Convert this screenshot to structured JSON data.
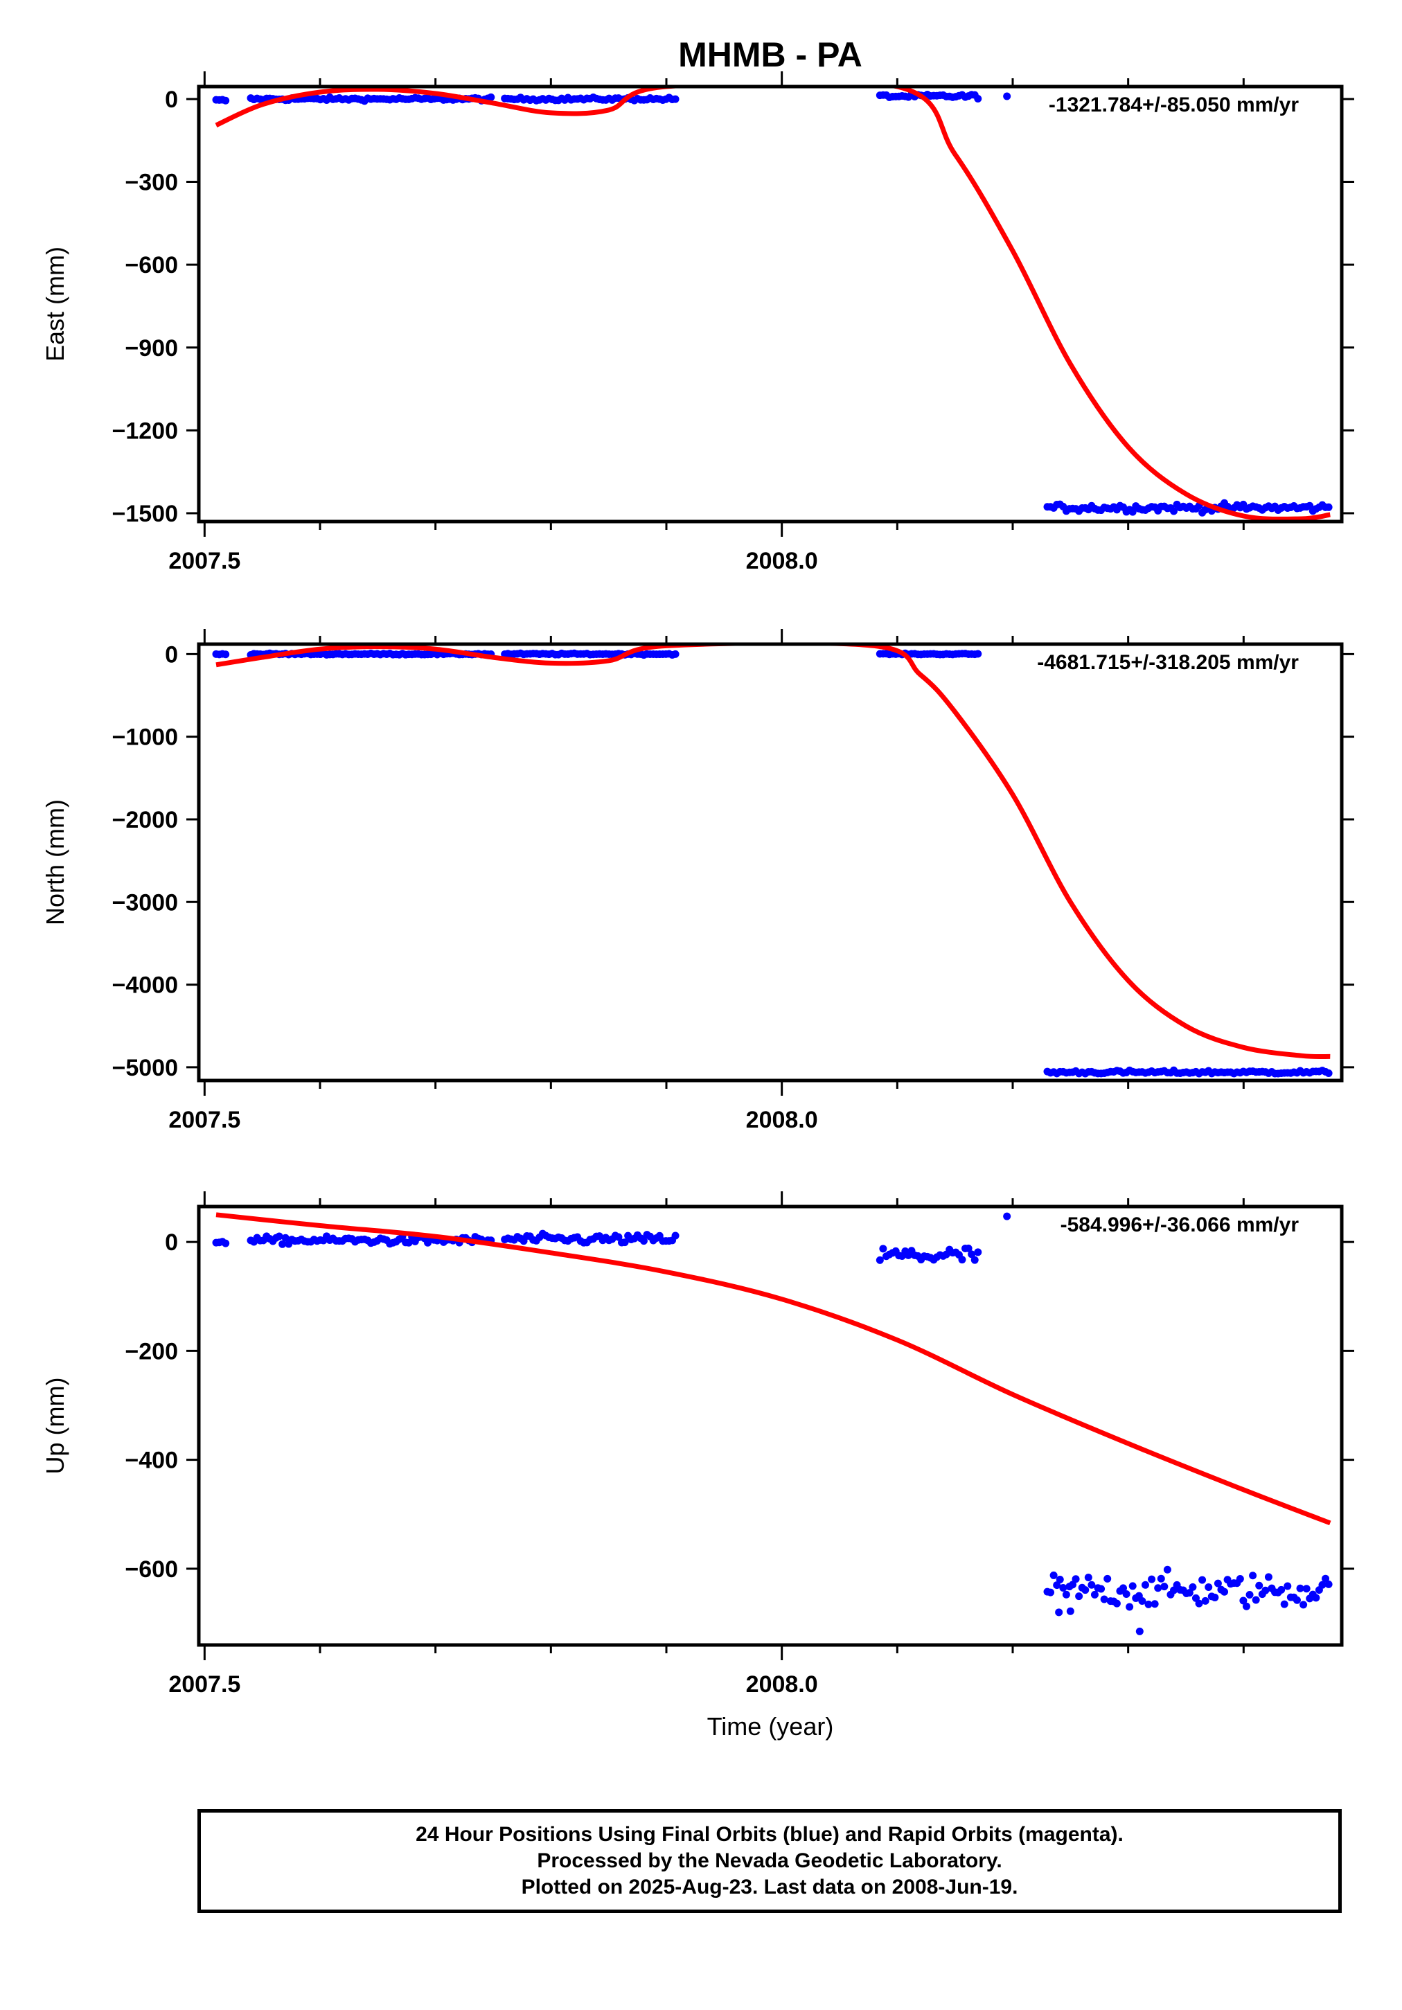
{
  "figure_title": "MHMB - PA",
  "footer": {
    "line1": "24 Hour Positions Using Final Orbits (blue) and Rapid Orbits (magenta).",
    "line2": "Processed by the Nevada Geodetic Laboratory.",
    "line3": "Plotted on 2025-Aug-23. Last data on 2008-Jun-19."
  },
  "colors": {
    "final_orbits": "#0000ff",
    "rapid_orbits": "#ff00ff",
    "model_fit": "#ff0000",
    "axes": "#000000"
  },
  "chart_data": [
    {
      "type": "scatter",
      "ylabel": "East (mm)",
      "xlabel": "",
      "xlim": [
        2007.495,
        2008.485
      ],
      "ylim": [
        -1530,
        45
      ],
      "xticks": [
        2007.5,
        2008.0
      ],
      "xtick_labels": [
        "2007.5",
        "2008.0"
      ],
      "yticks": [
        0,
        -300,
        -600,
        -900,
        -1200,
        -1500
      ],
      "ytick_labels": [
        "0",
        "−300",
        "−600",
        "−900",
        "−1200",
        "−1500"
      ],
      "rate_label": "-1321.784+/-85.050 mm/yr",
      "segments": [
        {
          "x_start": 2007.51,
          "x_end": 2007.52,
          "mean": -5,
          "noise": 3
        },
        {
          "x_start": 2007.54,
          "x_end": 2007.75,
          "mean": 0,
          "noise": 4
        },
        {
          "x_start": 2007.76,
          "x_end": 2007.91,
          "mean": 0,
          "noise": 4
        },
        {
          "x_start": 2008.085,
          "x_end": 2008.17,
          "mean": 10,
          "noise": 5
        },
        {
          "x_start": 2008.195,
          "x_end": 2008.195,
          "mean": 10,
          "noise": 0
        },
        {
          "x_start": 2008.23,
          "x_end": 2008.475,
          "mean": -1480,
          "noise": 10
        }
      ],
      "model_fit": {
        "x": [
          2007.51,
          2007.55,
          2007.6,
          2007.65,
          2007.7,
          2007.75,
          2007.8,
          2007.85,
          2007.9,
          2008.1,
          2008.15,
          2008.2,
          2008.25,
          2008.3,
          2008.35,
          2008.4,
          2008.45,
          2008.475
        ],
        "y": [
          -95,
          -20,
          25,
          35,
          20,
          -15,
          -50,
          -40,
          45,
          45,
          -200,
          -550,
          -960,
          -1260,
          -1430,
          -1510,
          -1520,
          -1505
        ]
      }
    },
    {
      "type": "scatter",
      "ylabel": "North (mm)",
      "xlabel": "",
      "xlim": [
        2007.495,
        2008.485
      ],
      "ylim": [
        -5160,
        120
      ],
      "xticks": [
        2007.5,
        2008.0
      ],
      "xtick_labels": [
        "2007.5",
        "2008.0"
      ],
      "yticks": [
        0,
        -1000,
        -2000,
        -3000,
        -4000,
        -5000
      ],
      "ytick_labels": [
        "0",
        "−1000",
        "−2000",
        "−3000",
        "−4000",
        "−5000"
      ],
      "rate_label": "-4681.715+/-318.205 mm/yr",
      "segments": [
        {
          "x_start": 2007.51,
          "x_end": 2007.52,
          "mean": 0,
          "noise": 5
        },
        {
          "x_start": 2007.54,
          "x_end": 2007.75,
          "mean": 0,
          "noise": 6
        },
        {
          "x_start": 2007.76,
          "x_end": 2007.91,
          "mean": 0,
          "noise": 6
        },
        {
          "x_start": 2008.085,
          "x_end": 2008.17,
          "mean": 0,
          "noise": 5
        },
        {
          "x_start": 2008.23,
          "x_end": 2008.475,
          "mean": -5060,
          "noise": 15
        }
      ],
      "model_fit": {
        "x": [
          2007.51,
          2007.55,
          2007.6,
          2007.65,
          2007.7,
          2007.75,
          2007.8,
          2007.85,
          2007.9,
          2008.08,
          2008.12,
          2008.15,
          2008.2,
          2008.25,
          2008.3,
          2008.35,
          2008.4,
          2008.45,
          2008.475
        ],
        "y": [
          -130,
          -40,
          60,
          90,
          60,
          -40,
          -110,
          -80,
          100,
          100,
          -250,
          -700,
          -1700,
          -3000,
          -3950,
          -4500,
          -4760,
          -4860,
          -4870
        ]
      }
    },
    {
      "type": "scatter",
      "ylabel": "Up (mm)",
      "xlabel": "Time (year)",
      "xlim": [
        2007.495,
        2008.485
      ],
      "ylim": [
        -740,
        65
      ],
      "xticks": [
        2007.5,
        2008.0
      ],
      "xtick_labels": [
        "2007.5",
        "2008.0"
      ],
      "yticks": [
        0,
        -200,
        -400,
        -600
      ],
      "ytick_labels": [
        "0",
        "−200",
        "−400",
        "−600"
      ],
      "rate_label": "-584.996+/-36.066 mm/yr",
      "segments": [
        {
          "x_start": 2007.51,
          "x_end": 2007.52,
          "mean": 0,
          "noise": 2
        },
        {
          "x_start": 2007.54,
          "x_end": 2007.75,
          "mean": 3,
          "noise": 5
        },
        {
          "x_start": 2007.76,
          "x_end": 2007.91,
          "mean": 5,
          "noise": 6
        },
        {
          "x_start": 2008.085,
          "x_end": 2008.17,
          "mean": -25,
          "noise": 12
        },
        {
          "x_start": 2008.195,
          "x_end": 2008.195,
          "mean": 47,
          "noise": 0
        },
        {
          "x_start": 2008.23,
          "x_end": 2008.475,
          "mean": -640,
          "noise": 22
        }
      ],
      "outliers": [
        {
          "x": 2008.31,
          "y": -715
        },
        {
          "x": 2008.24,
          "y": -680
        },
        {
          "x": 2008.25,
          "y": -678
        }
      ],
      "model_fit": {
        "x": [
          2007.51,
          2007.6,
          2007.7,
          2007.8,
          2007.9,
          2008.0,
          2008.1,
          2008.2,
          2008.3,
          2008.4,
          2008.475
        ],
        "y": [
          50,
          30,
          10,
          -20,
          -55,
          -105,
          -180,
          -280,
          -370,
          -455,
          -516
        ]
      }
    }
  ]
}
